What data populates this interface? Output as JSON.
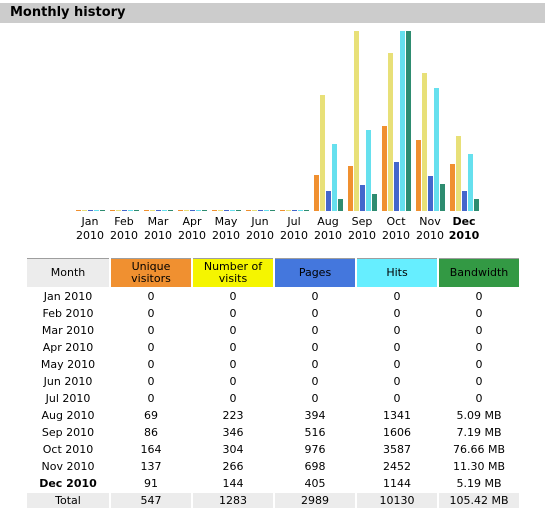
{
  "section_title": "Monthly history",
  "colors": {
    "unique_visitors": "#f09030",
    "visits": "#f5f500",
    "pages": "#4477dd",
    "hits": "#66eeff",
    "bandwidth": "#339944",
    "header_bg": "#cccccc",
    "row_bg": "#ececec"
  },
  "table": {
    "headers": {
      "month": "Month",
      "unique_visitors": "Unique visitors",
      "visits": "Number of visits",
      "pages": "Pages",
      "hits": "Hits",
      "bandwidth": "Bandwidth"
    },
    "rows": [
      {
        "month": "Jan 2010",
        "unique_visitors": "0",
        "visits": "0",
        "pages": "0",
        "hits": "0",
        "bandwidth": "0"
      },
      {
        "month": "Feb 2010",
        "unique_visitors": "0",
        "visits": "0",
        "pages": "0",
        "hits": "0",
        "bandwidth": "0"
      },
      {
        "month": "Mar 2010",
        "unique_visitors": "0",
        "visits": "0",
        "pages": "0",
        "hits": "0",
        "bandwidth": "0"
      },
      {
        "month": "Apr 2010",
        "unique_visitors": "0",
        "visits": "0",
        "pages": "0",
        "hits": "0",
        "bandwidth": "0"
      },
      {
        "month": "May 2010",
        "unique_visitors": "0",
        "visits": "0",
        "pages": "0",
        "hits": "0",
        "bandwidth": "0"
      },
      {
        "month": "Jun 2010",
        "unique_visitors": "0",
        "visits": "0",
        "pages": "0",
        "hits": "0",
        "bandwidth": "0"
      },
      {
        "month": "Jul 2010",
        "unique_visitors": "0",
        "visits": "0",
        "pages": "0",
        "hits": "0",
        "bandwidth": "0"
      },
      {
        "month": "Aug 2010",
        "unique_visitors": "69",
        "visits": "223",
        "pages": "394",
        "hits": "1341",
        "bandwidth": "5.09 MB"
      },
      {
        "month": "Sep 2010",
        "unique_visitors": "86",
        "visits": "346",
        "pages": "516",
        "hits": "1606",
        "bandwidth": "7.19 MB"
      },
      {
        "month": "Oct 2010",
        "unique_visitors": "164",
        "visits": "304",
        "pages": "976",
        "hits": "3587",
        "bandwidth": "76.66 MB"
      },
      {
        "month": "Nov 2010",
        "unique_visitors": "137",
        "visits": "266",
        "pages": "698",
        "hits": "2452",
        "bandwidth": "11.30 MB"
      },
      {
        "month": "Dec 2010",
        "unique_visitors": "91",
        "visits": "144",
        "pages": "405",
        "hits": "1144",
        "bandwidth": "5.19 MB"
      }
    ],
    "total": {
      "month": "Total",
      "unique_visitors": "547",
      "visits": "1283",
      "pages": "2989",
      "hits": "10130",
      "bandwidth": "105.42 MB"
    }
  },
  "chart_data": {
    "type": "bar",
    "categories": [
      "Jan",
      "Feb",
      "Mar",
      "Apr",
      "May",
      "Jun",
      "Jul",
      "Aug",
      "Sep",
      "Oct",
      "Nov",
      "Dec"
    ],
    "year": "2010",
    "current_category": "Dec",
    "series": [
      {
        "values": [
          0,
          0,
          0,
          0,
          0,
          0,
          0,
          69,
          86,
          164,
          137,
          91
        ]
      },
      {
        "values": [
          0,
          0,
          0,
          0,
          0,
          0,
          0,
          223,
          346,
          304,
          266,
          144
        ]
      },
      {
        "values": [
          0,
          0,
          0,
          0,
          0,
          0,
          0,
          394,
          516,
          976,
          698,
          405
        ]
      },
      {
        "values": [
          0,
          0,
          0,
          0,
          0,
          0,
          0,
          1341,
          1606,
          3587,
          2452,
          1144
        ]
      },
      {
        "values": [
          0,
          0,
          0,
          0,
          0,
          0,
          0,
          5.09,
          7.19,
          76.66,
          11.3,
          5.19
        ]
      }
    ],
    "series_colors": [
      "#f09030",
      "#e8e078",
      "#4466cc",
      "#66e0ee",
      "#2e8c70"
    ],
    "scale_groups": [
      [
        0,
        1
      ],
      [
        2,
        3
      ],
      [
        4
      ]
    ],
    "xlabel": "",
    "ylabel": "",
    "grid": false,
    "legend": "none"
  }
}
